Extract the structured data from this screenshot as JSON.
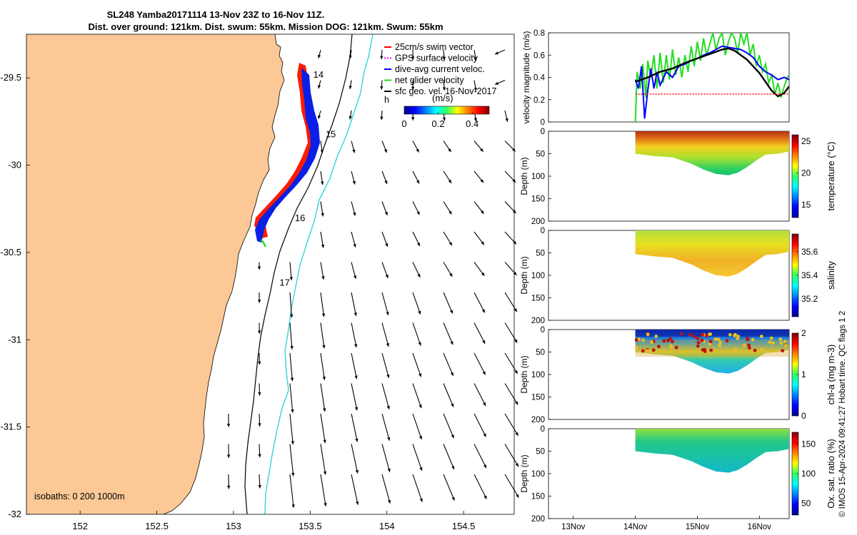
{
  "title": {
    "line1": "SL248 Yamba20171114 13-Nov 23Z to 16-Nov 11Z.",
    "line2": "Dist. over ground: 121km. Dist. swum: 55km. Mission DOG: 121km. Swum: 55km"
  },
  "credit": "© IMOS 15-Apr-2024 09:41:27 Hobart time. QC flags 1  2",
  "colors": {
    "land": "#fbc896",
    "coast_line": "#000000",
    "isobath_200": "#000000",
    "isobath_1000": "#33d6d6",
    "track_red": "#ff1a00",
    "track_blue": "#0a1fe6",
    "track_green": "#22e022",
    "vector": "#000000"
  },
  "chart_data": [
    {
      "type": "map",
      "xlim": [
        151.65,
        154.83
      ],
      "ylim": [
        -32,
        -29.25
      ],
      "xticks": [
        "152",
        "152.5",
        "153",
        "153.5",
        "154",
        "154.5"
      ],
      "yticks": [
        "-29.5",
        "-30",
        "-30.5",
        "-31",
        "-31.5",
        "-32"
      ],
      "legend": {
        "position": "top-right",
        "entries": [
          {
            "label": "25cm/s swim vector",
            "color": "#ff0000",
            "style": "line"
          },
          {
            "label": "GPS surface velocity",
            "color": "#ff00ff",
            "style": "dash"
          },
          {
            "label": "dive-avg current veloc.",
            "color": "#0000ff",
            "style": "line"
          },
          {
            "label": "net glider velocity",
            "color": "#22dd22",
            "style": "line"
          },
          {
            "label": "sfc geo. vel. 16-Nov-2017",
            "color": "#000000",
            "style": "line"
          }
        ],
        "extra_text": "h"
      },
      "colorbar": {
        "label": "(m/s)",
        "ticks": [
          "0",
          "0.2",
          "0.4"
        ],
        "range": [
          0,
          0.5
        ]
      },
      "isobaths_label": "isobaths: 0   200  1000m",
      "day_labels": [
        {
          "text": "14",
          "lon": 153.52,
          "lat": -29.5
        },
        {
          "text": "15",
          "lon": 153.6,
          "lat": -29.84
        },
        {
          "text": "16",
          "lon": 153.4,
          "lat": -30.32
        },
        {
          "text": "17",
          "lon": 153.3,
          "lat": -30.69
        }
      ]
    },
    {
      "type": "line",
      "ylabel": "velocity magnitude (m/s)",
      "ylim": [
        0,
        0.8
      ],
      "yticks": [
        "0",
        "0.2",
        "0.4",
        "0.6",
        "0.8"
      ],
      "xlim": [
        12.6,
        16.48
      ],
      "series": [
        {
          "color": "#22dd22",
          "x": [
            14.0,
            14.03,
            14.08,
            14.12,
            14.17,
            14.2,
            14.25,
            14.3,
            14.35,
            14.4,
            14.45,
            14.5,
            14.55,
            14.6,
            14.65,
            14.7,
            14.75,
            14.8,
            14.85,
            14.9,
            14.95,
            15.0,
            15.05,
            15.1,
            15.15,
            15.2,
            15.25,
            15.3,
            15.35,
            15.4,
            15.45,
            15.5,
            15.55,
            15.6,
            15.65,
            15.7,
            15.75,
            15.8,
            15.85,
            15.9,
            15.95,
            16.0,
            16.05,
            16.1,
            16.15,
            16.2,
            16.25,
            16.3,
            16.35,
            16.4,
            16.45,
            16.48
          ],
          "y": [
            0.0,
            0.45,
            0.3,
            0.52,
            0.22,
            0.55,
            0.4,
            0.6,
            0.3,
            0.62,
            0.35,
            0.6,
            0.38,
            0.65,
            0.42,
            0.58,
            0.4,
            0.6,
            0.45,
            0.68,
            0.5,
            0.72,
            0.55,
            0.75,
            0.6,
            0.7,
            0.8,
            0.65,
            0.75,
            0.8,
            0.6,
            0.72,
            0.8,
            0.75,
            0.62,
            0.8,
            0.7,
            0.8,
            0.6,
            0.7,
            0.5,
            0.6,
            0.45,
            0.52,
            0.35,
            0.42,
            0.25,
            0.35,
            0.22,
            0.32,
            0.4,
            0.42
          ]
        },
        {
          "color": "#0000ff",
          "x": [
            14.0,
            14.05,
            14.1,
            14.15,
            14.2,
            14.25,
            14.3,
            14.35,
            14.4,
            14.5,
            14.6,
            14.7,
            14.8,
            14.9,
            15.0,
            15.1,
            15.2,
            15.3,
            15.4,
            15.5,
            15.6,
            15.7,
            15.8,
            15.9,
            16.0,
            16.1,
            16.2,
            16.3,
            16.4,
            16.48
          ],
          "y": [
            0.38,
            0.3,
            0.5,
            0.03,
            0.28,
            0.48,
            0.3,
            0.45,
            0.33,
            0.45,
            0.4,
            0.5,
            0.52,
            0.55,
            0.57,
            0.6,
            0.62,
            0.65,
            0.68,
            0.67,
            0.66,
            0.65,
            0.62,
            0.58,
            0.5,
            0.45,
            0.42,
            0.38,
            0.4,
            0.38
          ]
        },
        {
          "color": "#000000",
          "x": [
            14.0,
            14.2,
            14.4,
            14.6,
            14.8,
            15.0,
            15.2,
            15.4,
            15.5,
            15.6,
            15.8,
            16.0,
            16.1,
            16.2,
            16.3,
            16.4,
            16.48
          ],
          "y": [
            0.36,
            0.4,
            0.45,
            0.48,
            0.53,
            0.57,
            0.61,
            0.65,
            0.66,
            0.64,
            0.56,
            0.44,
            0.36,
            0.28,
            0.23,
            0.26,
            0.32
          ]
        },
        {
          "color": "#ff0000",
          "x": [
            14.0,
            16.48
          ],
          "y": [
            0.25,
            0.25
          ]
        }
      ]
    },
    {
      "type": "heatmap",
      "ylabel": "Depth (m)",
      "colorbar_label": "temperature (°C)",
      "yticks": [
        "0",
        "50",
        "100",
        "150",
        "200"
      ],
      "ylim": [
        0,
        200
      ],
      "crange": [
        13,
        26
      ],
      "cticks": [
        "15",
        "20",
        "25"
      ]
    },
    {
      "type": "heatmap",
      "ylabel": "Depth (m)",
      "colorbar_label": "salinity",
      "yticks": [
        "0",
        "50",
        "100",
        "150",
        "200"
      ],
      "ylim": [
        0,
        200
      ],
      "crange": [
        35.05,
        35.75
      ],
      "cticks": [
        "35.2",
        "35.4",
        "35.6"
      ]
    },
    {
      "type": "heatmap",
      "ylabel": "Depth (m)",
      "colorbar_label": "chl-a (mg m-3)",
      "yticks": [
        "0",
        "50",
        "100",
        "150",
        "200"
      ],
      "ylim": [
        0,
        200
      ],
      "crange": [
        0,
        2
      ],
      "cticks": [
        "0",
        "1",
        "2"
      ]
    },
    {
      "type": "heatmap",
      "ylabel": "Depth (m)",
      "colorbar_label": "Ox. sat. ratio (%)",
      "yticks": [
        "0",
        "50",
        "100",
        "150",
        "200"
      ],
      "ylim": [
        0,
        200
      ],
      "crange": [
        30,
        170
      ],
      "cticks": [
        "50",
        "100",
        "150"
      ],
      "xticks": [
        "13Nov",
        "14Nov",
        "15Nov",
        "16Nov"
      ]
    }
  ]
}
